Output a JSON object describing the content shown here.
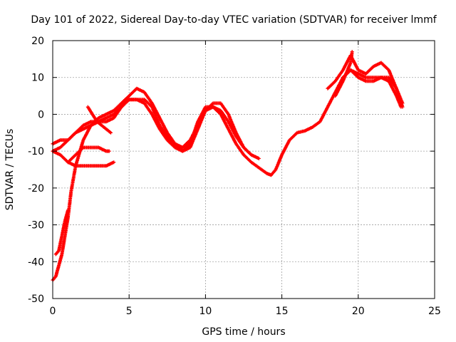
{
  "chart_data": {
    "type": "scatter",
    "title": "Day 101 of 2022, Sidereal Day-to-day VTEC variation (SDTVAR) for receiver lmmf",
    "xlabel": "GPS time / hours",
    "ylabel": "SDTVAR / TECUs",
    "xlim": [
      0,
      25
    ],
    "ylim": [
      -50,
      20
    ],
    "xticks": [
      0,
      5,
      10,
      15,
      20,
      25
    ],
    "yticks": [
      -50,
      -40,
      -30,
      -20,
      -10,
      0,
      10,
      20
    ],
    "xtick_labels": [
      "0",
      "5",
      "10",
      "15",
      "20",
      "25"
    ],
    "ytick_labels": [
      "-50",
      "-40",
      "-30",
      "-20",
      "-10",
      "0",
      "10",
      "20"
    ],
    "grid": true,
    "marker": "+",
    "color": "#ff0000",
    "series": [
      {
        "name": "track-1",
        "x": [
          0.0,
          0.2,
          0.4,
          0.6,
          0.8,
          1.0,
          1.2,
          1.5,
          2.0,
          2.5,
          3.0,
          3.5,
          4.0,
          4.5,
          5.0,
          5.5,
          6.0,
          6.5,
          7.0,
          7.5,
          8.0,
          8.5,
          9.0,
          9.5,
          10.0,
          10.5,
          11.0,
          11.5,
          12.0,
          12.5,
          13.0,
          13.5,
          14.0,
          14.3,
          14.6,
          15.0,
          15.5,
          16.0,
          16.5,
          17.0,
          17.5,
          18.0,
          18.5,
          19.0,
          19.5,
          20.0,
          20.5,
          21.0,
          21.5,
          22.0,
          22.5,
          22.8
        ],
        "y": [
          -45,
          -44,
          -41,
          -38,
          -33,
          -28,
          -21,
          -14,
          -7,
          -3,
          -2,
          -2,
          -1,
          2,
          4,
          4,
          3,
          0,
          -4,
          -7,
          -9,
          -10,
          -8,
          -2,
          2,
          2,
          0,
          -4,
          -8,
          -11,
          -13,
          -14.5,
          -16,
          -16.5,
          -15,
          -11,
          -7,
          -5,
          -4.5,
          -3.5,
          -2,
          2,
          6,
          10,
          12,
          11,
          10,
          10,
          10,
          9,
          5,
          2
        ]
      },
      {
        "name": "track-2",
        "x": [
          0.0,
          0.5,
          1.0,
          1.5,
          2.0,
          2.5,
          3.0,
          3.5,
          4.0,
          4.5,
          5.0,
          5.5,
          6.0,
          6.5,
          7.0,
          7.5,
          8.0,
          8.5,
          9.0,
          9.5,
          10.0,
          10.5,
          11.0,
          11.5,
          12.0,
          12.5,
          13.0
        ],
        "y": [
          -8,
          -7,
          -7,
          -5,
          -3,
          -2,
          -2,
          -1,
          0,
          2,
          4,
          4,
          4,
          2,
          -3,
          -6,
          -8,
          -9,
          -7,
          -3,
          1,
          2,
          1,
          -2,
          -6,
          -9,
          -11
        ]
      },
      {
        "name": "track-3",
        "x": [
          0.0,
          0.5,
          1.0,
          1.5,
          2.0,
          2.5,
          3.0,
          3.5,
          4.0,
          4.5,
          5.0,
          5.5,
          6.0,
          6.5,
          7.0,
          7.5,
          8.0,
          8.5,
          9.0,
          9.5,
          10.0,
          10.5,
          11.0,
          11.5,
          12.0,
          12.5,
          13.0,
          13.5
        ],
        "y": [
          -10,
          -9,
          -7,
          -5,
          -4,
          -3,
          -1,
          0,
          1,
          3,
          5,
          7,
          6,
          3,
          -1,
          -5,
          -8,
          -10,
          -9,
          -4,
          1,
          3,
          3,
          0,
          -5,
          -9,
          -11,
          -12
        ]
      },
      {
        "name": "track-4",
        "x": [
          0.0,
          0.5,
          1.0,
          1.5,
          2.0,
          2.5,
          3.0,
          3.5,
          4.0
        ],
        "y": [
          -10,
          -11,
          -13,
          -14,
          -14,
          -14,
          -14,
          -14,
          -13
        ]
      },
      {
        "name": "track-5",
        "x": [
          1.0,
          1.5,
          2.0,
          2.5,
          3.0,
          3.5,
          3.7
        ],
        "y": [
          -13,
          -11,
          -9,
          -9,
          -9,
          -10,
          -10
        ]
      },
      {
        "name": "track-6",
        "x": [
          2.3,
          2.6,
          2.9,
          3.2,
          3.5,
          3.8
        ],
        "y": [
          2,
          0,
          -2,
          -3,
          -4,
          -5
        ]
      },
      {
        "name": "track-7",
        "x": [
          18.0,
          18.5,
          19.0,
          19.5,
          20.0,
          20.5,
          21.0,
          21.5,
          22.0,
          22.5,
          22.9
        ],
        "y": [
          7,
          9,
          12,
          16,
          12,
          11,
          13,
          14,
          12,
          7,
          3
        ]
      },
      {
        "name": "track-8",
        "x": [
          19.0,
          19.5,
          20.0,
          20.5,
          21.0,
          21.5,
          22.0,
          22.5,
          22.9
        ],
        "y": [
          10,
          12,
          10,
          9,
          9,
          10,
          10,
          7,
          2
        ]
      },
      {
        "name": "track-9",
        "x": [
          18.5,
          19.0,
          19.5,
          19.6
        ],
        "y": [
          5,
          9,
          14,
          17
        ]
      },
      {
        "name": "track-10",
        "x": [
          0.2,
          0.4,
          0.6,
          0.8,
          1.0
        ],
        "y": [
          -38,
          -37,
          -33,
          -29,
          -26
        ]
      }
    ]
  }
}
